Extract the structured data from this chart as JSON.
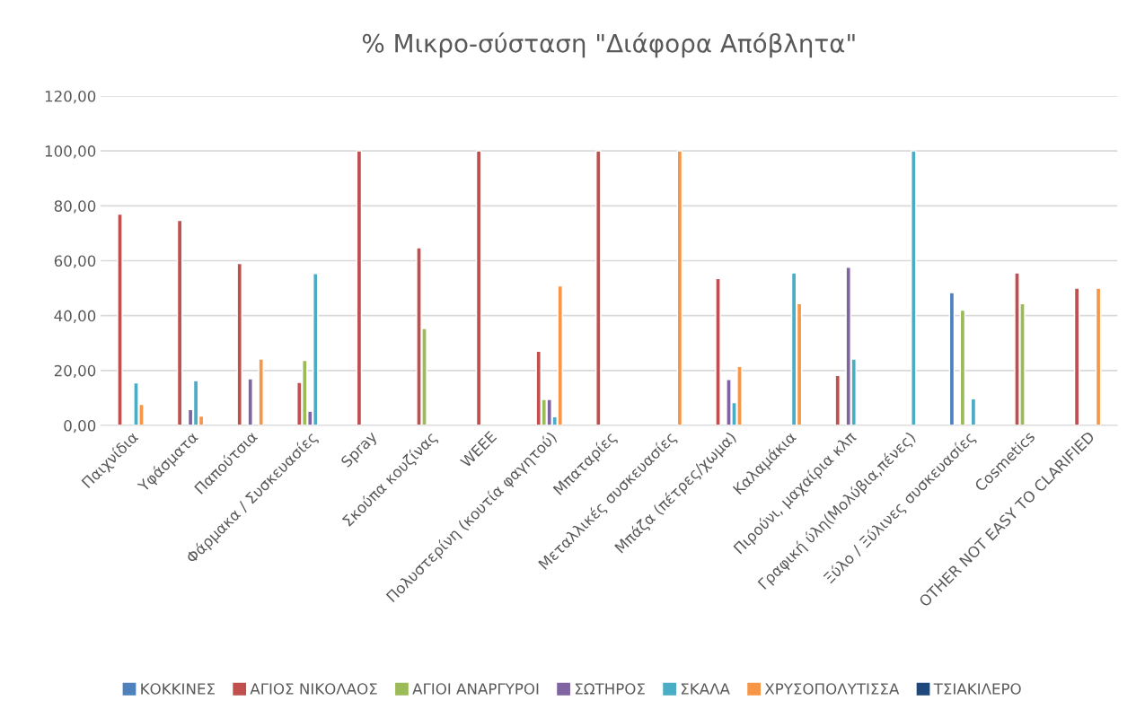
{
  "chart_data": {
    "type": "bar",
    "title": "% Μικρο-σύσταση \"Διάφορα Απόβλητα\"",
    "categories": [
      "Παιχνίδια",
      "Υφάσματα",
      "Παπούτσια",
      "Φάρμακα / Συσκευασίες",
      "Spray",
      "Σκούπα κουζίνας",
      "WEEE",
      "Πολυστερίνη (κουτία φαγητού)",
      "Μπαταρίες",
      "Μεταλλικές συσκευασίες",
      "Μπάζα (πέτρες/χωμα)",
      "Καλαμάκια",
      "Πιρούνι, μαχαίρια κλπ",
      "Γραφική ύλη(Μολύβια,πένες)",
      "Ξύλο / Ξύλινες συσκευασίες",
      "Cosmetics",
      "OTHER NOT EASY TO CLARIFIED"
    ],
    "series": [
      {
        "name": "ΚΟΚΚΙΝΕΣ",
        "color": "#4f81bd",
        "values": [
          null,
          null,
          null,
          null,
          null,
          null,
          null,
          null,
          null,
          null,
          null,
          null,
          null,
          null,
          48.4,
          null,
          null
        ]
      },
      {
        "name": "ΑΓΙΟΣ ΝΙΚΟΛΑΟΣ",
        "color": "#c0504d",
        "values": [
          77,
          74.7,
          59,
          15.7,
          100,
          64.7,
          100,
          27,
          100,
          null,
          53.5,
          null,
          18.2,
          null,
          null,
          55.6,
          50
        ]
      },
      {
        "name": "ΑΓΙΟΙ ΑΝΑΡΓΥΡΟΙ",
        "color": "#9bbb59",
        "values": [
          null,
          null,
          null,
          23.7,
          null,
          35.3,
          null,
          9.5,
          null,
          null,
          null,
          null,
          null,
          null,
          42,
          44.4,
          null
        ]
      },
      {
        "name": "ΣΩΤΗΡΟΣ",
        "color": "#8064a2",
        "values": [
          null,
          5.8,
          17,
          5.2,
          null,
          null,
          null,
          9.5,
          null,
          null,
          16.7,
          null,
          57.6,
          null,
          null,
          null,
          null
        ]
      },
      {
        "name": "ΣΚΑΛΑ",
        "color": "#4bacc6",
        "values": [
          15.5,
          16.3,
          null,
          55.3,
          null,
          null,
          null,
          3.2,
          null,
          null,
          8.3,
          55.6,
          24.2,
          100,
          9.7,
          null,
          null
        ]
      },
      {
        "name": "ΧΡΥΣΟΠΟΛΥΤΙΣΣΑ",
        "color": "#f79646",
        "values": [
          7.7,
          3.4,
          24.2,
          null,
          null,
          null,
          null,
          50.8,
          null,
          100,
          21.5,
          44.4,
          null,
          null,
          null,
          null,
          50
        ]
      },
      {
        "name": "ΤΣΙΑΚΙΛΕΡΟ",
        "color": "#1f497d",
        "values": [
          null,
          null,
          null,
          null,
          null,
          null,
          null,
          null,
          null,
          null,
          null,
          null,
          null,
          null,
          null,
          null,
          null
        ]
      }
    ],
    "ylim": [
      0,
      120
    ],
    "yticks": [
      {
        "value": 0,
        "label": "0,00"
      },
      {
        "value": 20,
        "label": "20,00"
      },
      {
        "value": 40,
        "label": "40,00"
      },
      {
        "value": 60,
        "label": "60,00"
      },
      {
        "value": 80,
        "label": "80,00"
      },
      {
        "value": 100,
        "label": "100,00"
      },
      {
        "value": 120,
        "label": "120,00"
      }
    ],
    "grid": "y",
    "legend": "bottom"
  }
}
